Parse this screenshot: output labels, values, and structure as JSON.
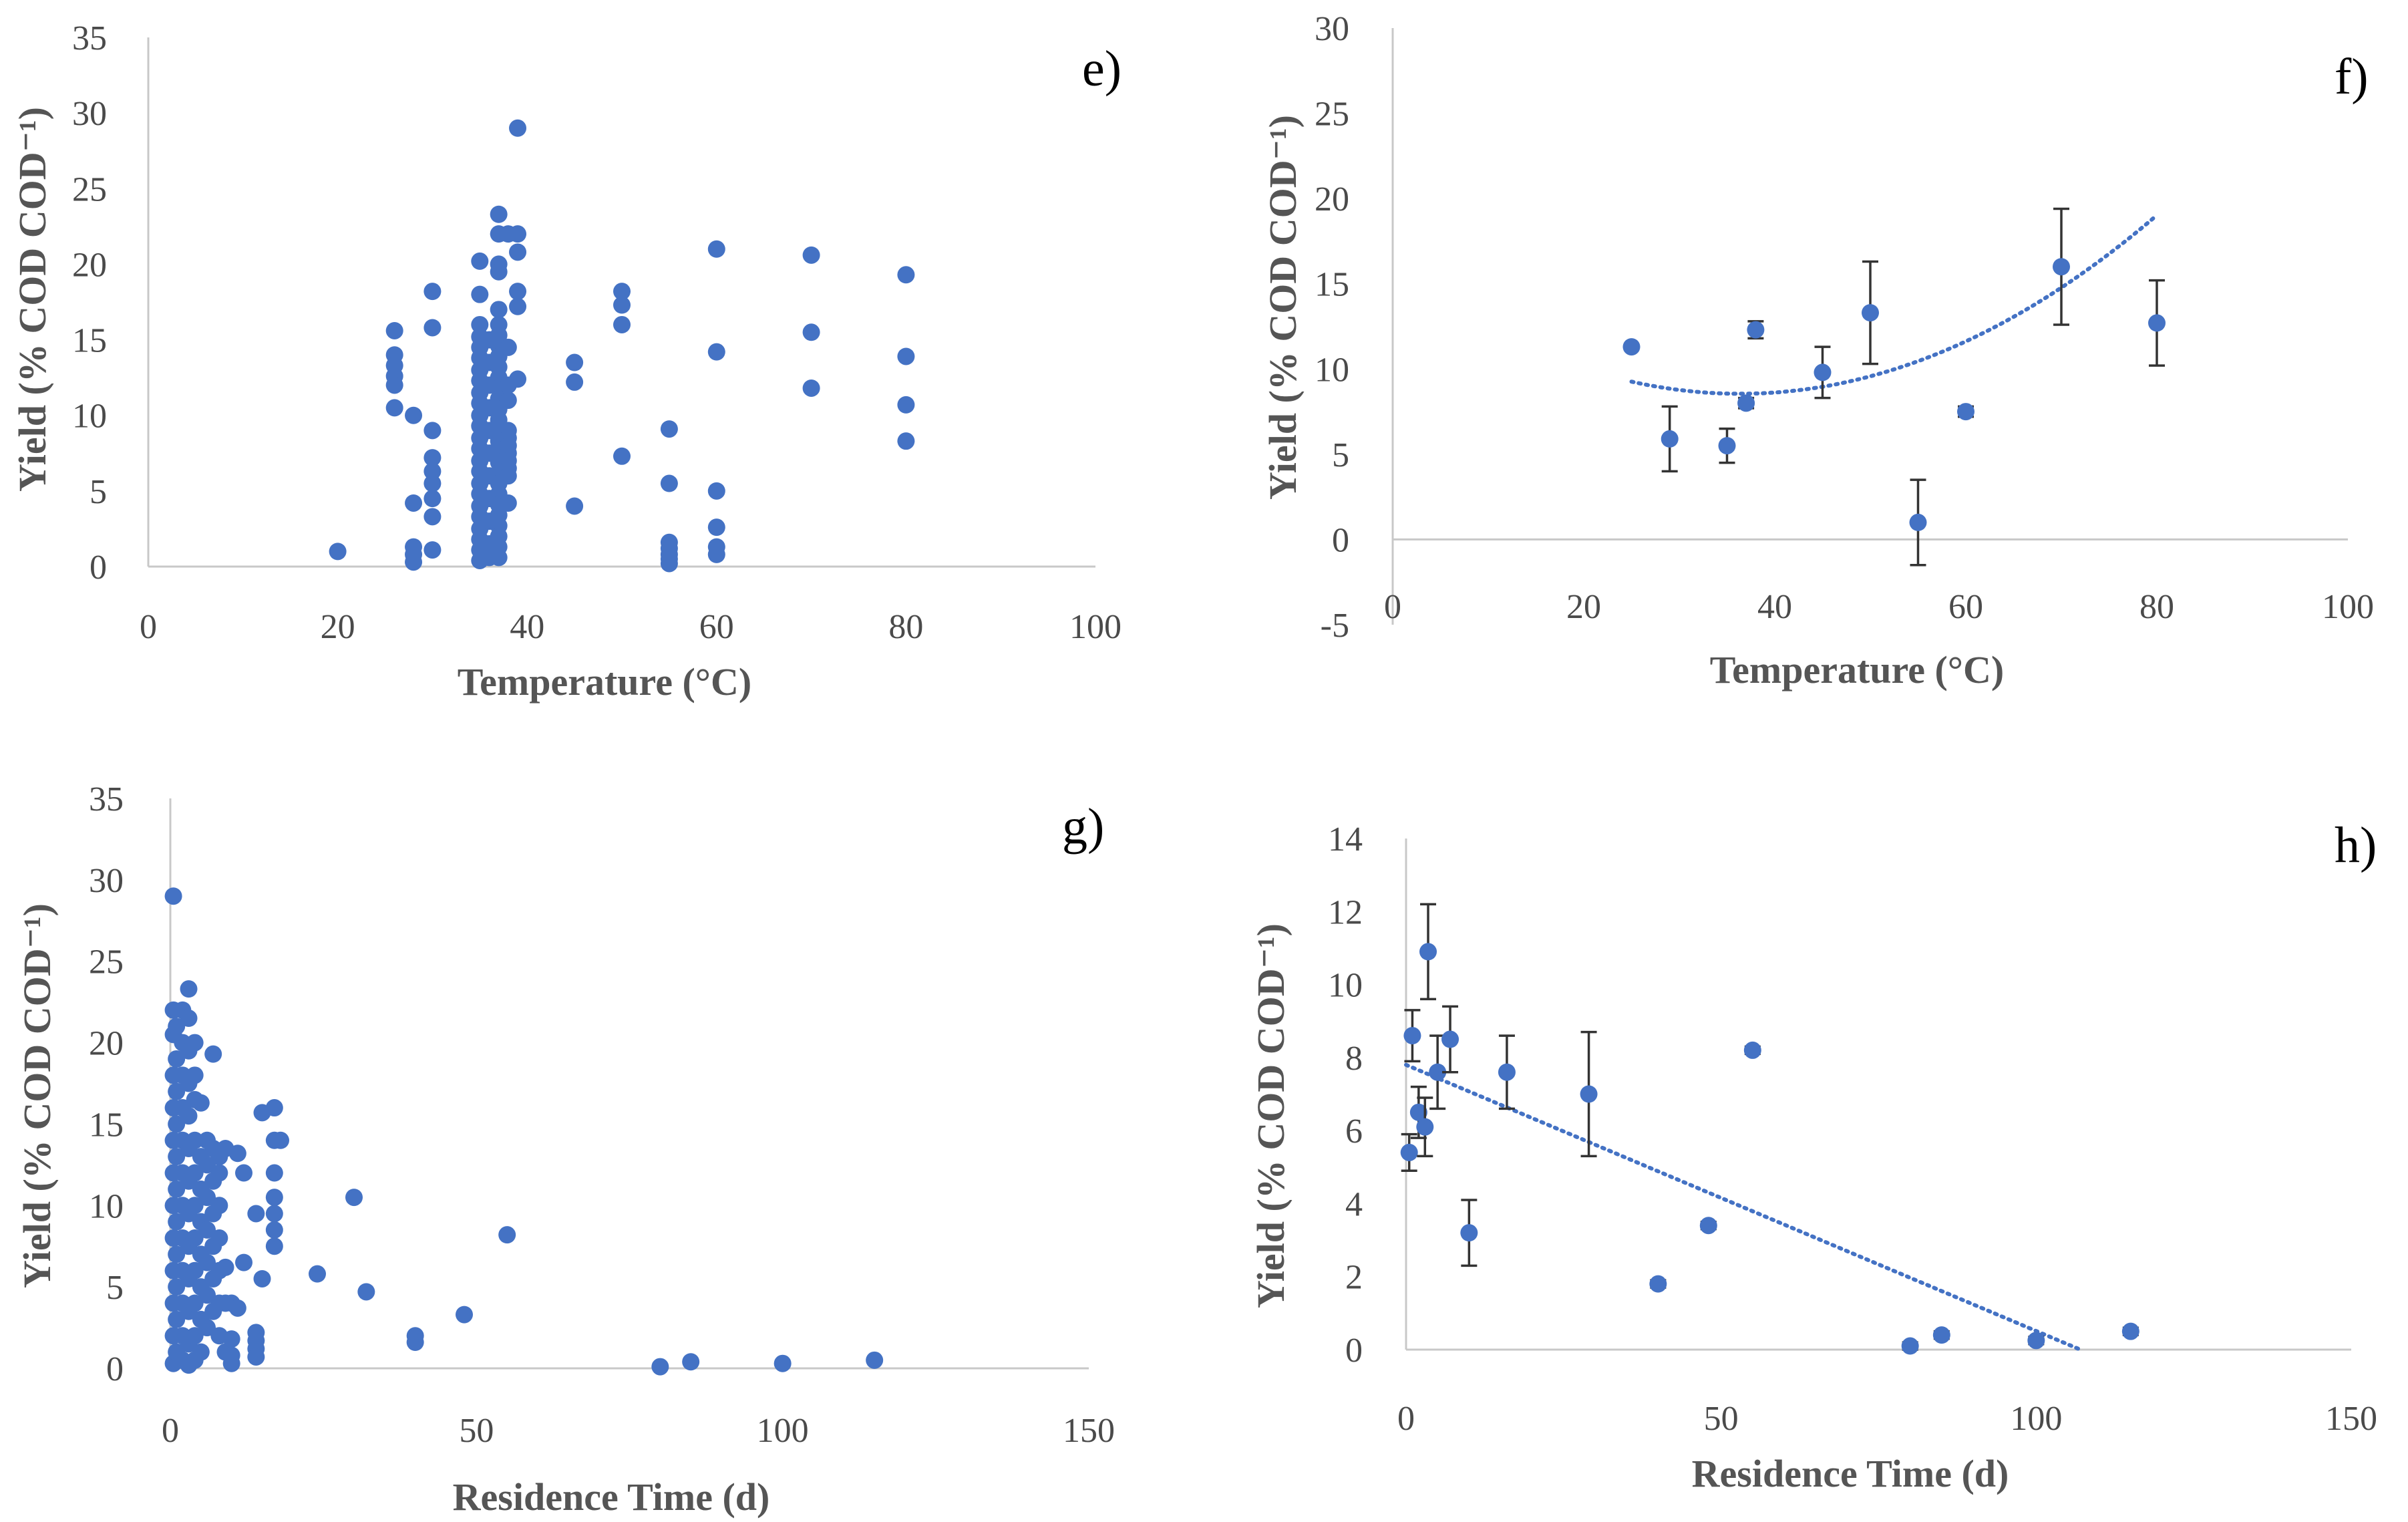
{
  "chart_data": [
    {
      "id": "e",
      "type": "scatter",
      "panel_label": "e)",
      "xlabel": "Temperature (°C)",
      "ylabel": "Yield (% COD COD⁻¹)",
      "xlim": [
        0,
        100
      ],
      "ylim": [
        0,
        35
      ],
      "xticks": [
        0,
        20,
        40,
        60,
        80,
        100
      ],
      "yticks": [
        0,
        5,
        10,
        15,
        20,
        25,
        30,
        35
      ],
      "points": [
        [
          20,
          1.0
        ],
        [
          26,
          15.6
        ],
        [
          26,
          14.0
        ],
        [
          26,
          13.3
        ],
        [
          26,
          12.6
        ],
        [
          26,
          12.0
        ],
        [
          26,
          10.5
        ],
        [
          28,
          10.0
        ],
        [
          28,
          4.2
        ],
        [
          28,
          1.3
        ],
        [
          28,
          0.8
        ],
        [
          28,
          0.3
        ],
        [
          30,
          18.2
        ],
        [
          30,
          15.8
        ],
        [
          30,
          9.0
        ],
        [
          30,
          7.2
        ],
        [
          30,
          6.3
        ],
        [
          30,
          5.5
        ],
        [
          30,
          4.5
        ],
        [
          30,
          3.3
        ],
        [
          30,
          1.1
        ],
        [
          35,
          20.2
        ],
        [
          35,
          18.0
        ],
        [
          35,
          16.0
        ],
        [
          35,
          15.2
        ],
        [
          35,
          14.5
        ],
        [
          35,
          13.8
        ],
        [
          35,
          13.0
        ],
        [
          35,
          12.3
        ],
        [
          35,
          11.5
        ],
        [
          35,
          10.8
        ],
        [
          35,
          10.0
        ],
        [
          35,
          9.3
        ],
        [
          35,
          8.5
        ],
        [
          35,
          7.8
        ],
        [
          35,
          7.0
        ],
        [
          35,
          6.3
        ],
        [
          35,
          5.5
        ],
        [
          35,
          4.8
        ],
        [
          35,
          4.0
        ],
        [
          35,
          3.3
        ],
        [
          35,
          2.5
        ],
        [
          35,
          1.8
        ],
        [
          35,
          1.1
        ],
        [
          35,
          0.4
        ],
        [
          36,
          15.0
        ],
        [
          36,
          13.5
        ],
        [
          36,
          12.0
        ],
        [
          36,
          10.5
        ],
        [
          36,
          9.0
        ],
        [
          36,
          7.5
        ],
        [
          36,
          6.0
        ],
        [
          36,
          4.5
        ],
        [
          36,
          3.0
        ],
        [
          36,
          1.5
        ],
        [
          36,
          0.6
        ],
        [
          37,
          23.3
        ],
        [
          37,
          22.0
        ],
        [
          37,
          20.0
        ],
        [
          37,
          19.5
        ],
        [
          37,
          17.0
        ],
        [
          37,
          16.0
        ],
        [
          37,
          15.3
        ],
        [
          37,
          14.6
        ],
        [
          37,
          13.9
        ],
        [
          37,
          13.2
        ],
        [
          37,
          12.5
        ],
        [
          37,
          11.8
        ],
        [
          37,
          11.1
        ],
        [
          37,
          10.4
        ],
        [
          37,
          9.7
        ],
        [
          37,
          9.0
        ],
        [
          37,
          8.3
        ],
        [
          37,
          7.6
        ],
        [
          37,
          6.9
        ],
        [
          37,
          6.2
        ],
        [
          37,
          5.5
        ],
        [
          37,
          4.8
        ],
        [
          37,
          4.1
        ],
        [
          37,
          3.4
        ],
        [
          37,
          2.7
        ],
        [
          37,
          2.0
        ],
        [
          37,
          1.3
        ],
        [
          37,
          0.6
        ],
        [
          38,
          22.0
        ],
        [
          38,
          14.5
        ],
        [
          38,
          12.0
        ],
        [
          38,
          11.0
        ],
        [
          38,
          9.0
        ],
        [
          38,
          8.5
        ],
        [
          38,
          8.0
        ],
        [
          38,
          7.5
        ],
        [
          38,
          7.0
        ],
        [
          38,
          6.5
        ],
        [
          38,
          6.0
        ],
        [
          38,
          4.2
        ],
        [
          39,
          29.0
        ],
        [
          39,
          22.0
        ],
        [
          39,
          20.8
        ],
        [
          39,
          18.2
        ],
        [
          39,
          17.2
        ],
        [
          39,
          12.4
        ],
        [
          45,
          13.5
        ],
        [
          45,
          12.2
        ],
        [
          45,
          4.0
        ],
        [
          50,
          18.2
        ],
        [
          50,
          17.3
        ],
        [
          50,
          16.0
        ],
        [
          50,
          7.3
        ],
        [
          55,
          9.1
        ],
        [
          55,
          5.5
        ],
        [
          55,
          1.6
        ],
        [
          55,
          1.2
        ],
        [
          55,
          0.8
        ],
        [
          55,
          0.5
        ],
        [
          55,
          0.2
        ],
        [
          60,
          21.0
        ],
        [
          60,
          14.2
        ],
        [
          60,
          5.0
        ],
        [
          60,
          2.6
        ],
        [
          60,
          1.3
        ],
        [
          60,
          0.8
        ],
        [
          70,
          20.6
        ],
        [
          70,
          15.5
        ],
        [
          70,
          11.8
        ],
        [
          80,
          19.3
        ],
        [
          80,
          13.9
        ],
        [
          80,
          10.7
        ],
        [
          80,
          8.3
        ]
      ]
    },
    {
      "id": "f",
      "type": "scatter",
      "panel_label": "f)",
      "xlabel": "Temperature (°C)",
      "ylabel": "Yield (% COD COD⁻¹)",
      "xlim": [
        0,
        100
      ],
      "ylim": [
        -5,
        30
      ],
      "xticks": [
        0,
        20,
        40,
        60,
        80,
        100
      ],
      "yticks": [
        -5,
        0,
        5,
        10,
        15,
        20,
        25,
        30
      ],
      "points": [
        {
          "x": 25,
          "y": 11.3,
          "err": 0
        },
        {
          "x": 29,
          "y": 5.9,
          "err": 1.9
        },
        {
          "x": 35,
          "y": 5.5,
          "err": 1.0
        },
        {
          "x": 37,
          "y": 8.0,
          "err": 0.3
        },
        {
          "x": 38,
          "y": 12.3,
          "err": 0.5
        },
        {
          "x": 45,
          "y": 9.8,
          "err": 1.5
        },
        {
          "x": 50,
          "y": 13.3,
          "err": 3.0
        },
        {
          "x": 55,
          "y": 1.0,
          "err": 2.5
        },
        {
          "x": 60,
          "y": 7.5,
          "err": 0.3
        },
        {
          "x": 70,
          "y": 16.0,
          "err": 3.4
        },
        {
          "x": 80,
          "y": 12.7,
          "err": 2.5
        }
      ],
      "trendline": {
        "type": "polynomial",
        "coefficients": [
          15.82,
          -0.4,
          0.0055
        ],
        "x_range": [
          25,
          80
        ]
      }
    },
    {
      "id": "g",
      "type": "scatter",
      "panel_label": "g)",
      "xlabel": "Residence Time (d)",
      "ylabel": "Yield (% COD COD⁻¹)",
      "xlim": [
        0,
        150
      ],
      "ylim": [
        0,
        35
      ],
      "xticks": [
        0,
        50,
        100,
        150
      ],
      "yticks": [
        0,
        5,
        10,
        15,
        20,
        25,
        30,
        35
      ],
      "points": [
        [
          0.5,
          29.0
        ],
        [
          0.5,
          22.0
        ],
        [
          0.5,
          20.5
        ],
        [
          0.5,
          18.0
        ],
        [
          0.5,
          16.0
        ],
        [
          0.5,
          14.0
        ],
        [
          0.5,
          12.0
        ],
        [
          0.5,
          10.0
        ],
        [
          0.5,
          8.0
        ],
        [
          0.5,
          6.0
        ],
        [
          0.5,
          4.0
        ],
        [
          0.5,
          2.0
        ],
        [
          0.5,
          0.3
        ],
        [
          1,
          21.0
        ],
        [
          1,
          19.0
        ],
        [
          1,
          17.0
        ],
        [
          1,
          15.0
        ],
        [
          1,
          13.0
        ],
        [
          1,
          11.0
        ],
        [
          1,
          9.0
        ],
        [
          1,
          7.0
        ],
        [
          1,
          5.0
        ],
        [
          1,
          3.0
        ],
        [
          1,
          1.0
        ],
        [
          2,
          22.0
        ],
        [
          2,
          20.0
        ],
        [
          2,
          18.0
        ],
        [
          2,
          16.0
        ],
        [
          2,
          14.0
        ],
        [
          2,
          12.0
        ],
        [
          2,
          10.0
        ],
        [
          2,
          8.0
        ],
        [
          2,
          6.0
        ],
        [
          2,
          4.0
        ],
        [
          2,
          2.0
        ],
        [
          2,
          0.5
        ],
        [
          3,
          23.3
        ],
        [
          3,
          21.5
        ],
        [
          3,
          19.5
        ],
        [
          3,
          17.5
        ],
        [
          3,
          15.5
        ],
        [
          3,
          13.5
        ],
        [
          3,
          11.5
        ],
        [
          3,
          9.5
        ],
        [
          3,
          7.5
        ],
        [
          3,
          5.5
        ],
        [
          3,
          3.5
        ],
        [
          3,
          1.5
        ],
        [
          3,
          0.2
        ],
        [
          4,
          20.0
        ],
        [
          4,
          18.0
        ],
        [
          4,
          16.5
        ],
        [
          4,
          14.0
        ],
        [
          4,
          12.0
        ],
        [
          4,
          10.0
        ],
        [
          4,
          8.0
        ],
        [
          4,
          6.0
        ],
        [
          4,
          4.0
        ],
        [
          4,
          2.0
        ],
        [
          4,
          0.5
        ],
        [
          5,
          16.3
        ],
        [
          5,
          13.0
        ],
        [
          5,
          11.0
        ],
        [
          5,
          9.0
        ],
        [
          5,
          7.0
        ],
        [
          5,
          5.0
        ],
        [
          5,
          3.0
        ],
        [
          5,
          1.0
        ],
        [
          6,
          14.0
        ],
        [
          6,
          12.5
        ],
        [
          6,
          10.5
        ],
        [
          6,
          8.5
        ],
        [
          6,
          6.5
        ],
        [
          6,
          4.5
        ],
        [
          6,
          2.5
        ],
        [
          7,
          19.3
        ],
        [
          7,
          13.5
        ],
        [
          7,
          11.5
        ],
        [
          7,
          9.5
        ],
        [
          7,
          7.5
        ],
        [
          7,
          5.5
        ],
        [
          7,
          3.5
        ],
        [
          8,
          13.0
        ],
        [
          8,
          12.0
        ],
        [
          8,
          10.0
        ],
        [
          8,
          8.0
        ],
        [
          8,
          6.0
        ],
        [
          8,
          4.0
        ],
        [
          8,
          2.0
        ],
        [
          9,
          13.5
        ],
        [
          9,
          6.2
        ],
        [
          9,
          4.0
        ],
        [
          9,
          1.0
        ],
        [
          10,
          4.0
        ],
        [
          10,
          1.8
        ],
        [
          10,
          0.8
        ],
        [
          10,
          0.3
        ],
        [
          11,
          13.2
        ],
        [
          11,
          3.7
        ],
        [
          12,
          12.0
        ],
        [
          12,
          6.5
        ],
        [
          14,
          9.5
        ],
        [
          14,
          2.2
        ],
        [
          14,
          1.7
        ],
        [
          14,
          1.2
        ],
        [
          14,
          0.7
        ],
        [
          15,
          15.7
        ],
        [
          15,
          5.5
        ],
        [
          17,
          16.0
        ],
        [
          17,
          14.0
        ],
        [
          17,
          12.0
        ],
        [
          17,
          10.5
        ],
        [
          17,
          9.5
        ],
        [
          17,
          8.5
        ],
        [
          17,
          7.5
        ],
        [
          18,
          14.0
        ],
        [
          24,
          5.8
        ],
        [
          30,
          10.5
        ],
        [
          32,
          4.7
        ],
        [
          40,
          2.0
        ],
        [
          40,
          1.6
        ],
        [
          48,
          3.3
        ],
        [
          55,
          8.2
        ],
        [
          80,
          0.1
        ],
        [
          85,
          0.4
        ],
        [
          100,
          0.3
        ],
        [
          115,
          0.5
        ]
      ]
    },
    {
      "id": "h",
      "type": "scatter",
      "panel_label": "h)",
      "xlabel": "Residence Time (d)",
      "ylabel": "Yield (% COD COD⁻¹)",
      "xlim": [
        0,
        150
      ],
      "ylim": [
        0,
        14
      ],
      "xticks": [
        0,
        50,
        100,
        150
      ],
      "yticks": [
        0,
        2,
        4,
        6,
        8,
        10,
        12,
        14
      ],
      "points": [
        {
          "x": 0.5,
          "y": 5.4,
          "err": 0.5
        },
        {
          "x": 1,
          "y": 8.6,
          "err": 0.7
        },
        {
          "x": 2,
          "y": 6.5,
          "err": 0.7
        },
        {
          "x": 3,
          "y": 6.1,
          "err": 0.8
        },
        {
          "x": 3.5,
          "y": 10.9,
          "err": 1.3
        },
        {
          "x": 5,
          "y": 7.6,
          "err": 1.0
        },
        {
          "x": 7,
          "y": 8.5,
          "err": 0.9
        },
        {
          "x": 10,
          "y": 3.2,
          "err": 0.9
        },
        {
          "x": 16,
          "y": 7.6,
          "err": 1.0
        },
        {
          "x": 29,
          "y": 7.0,
          "err": 1.7
        },
        {
          "x": 40,
          "y": 1.8,
          "err": 0.1
        },
        {
          "x": 48,
          "y": 3.4,
          "err": 0.1
        },
        {
          "x": 55,
          "y": 8.2,
          "err": 0.1
        },
        {
          "x": 80,
          "y": 0.1,
          "err": 0.1
        },
        {
          "x": 85,
          "y": 0.4,
          "err": 0.1
        },
        {
          "x": 100,
          "y": 0.25,
          "err": 0.1
        },
        {
          "x": 115,
          "y": 0.5,
          "err": 0.1
        }
      ],
      "trendline": {
        "type": "linear",
        "points": [
          [
            0,
            7.8
          ],
          [
            107,
            0
          ]
        ]
      }
    }
  ]
}
